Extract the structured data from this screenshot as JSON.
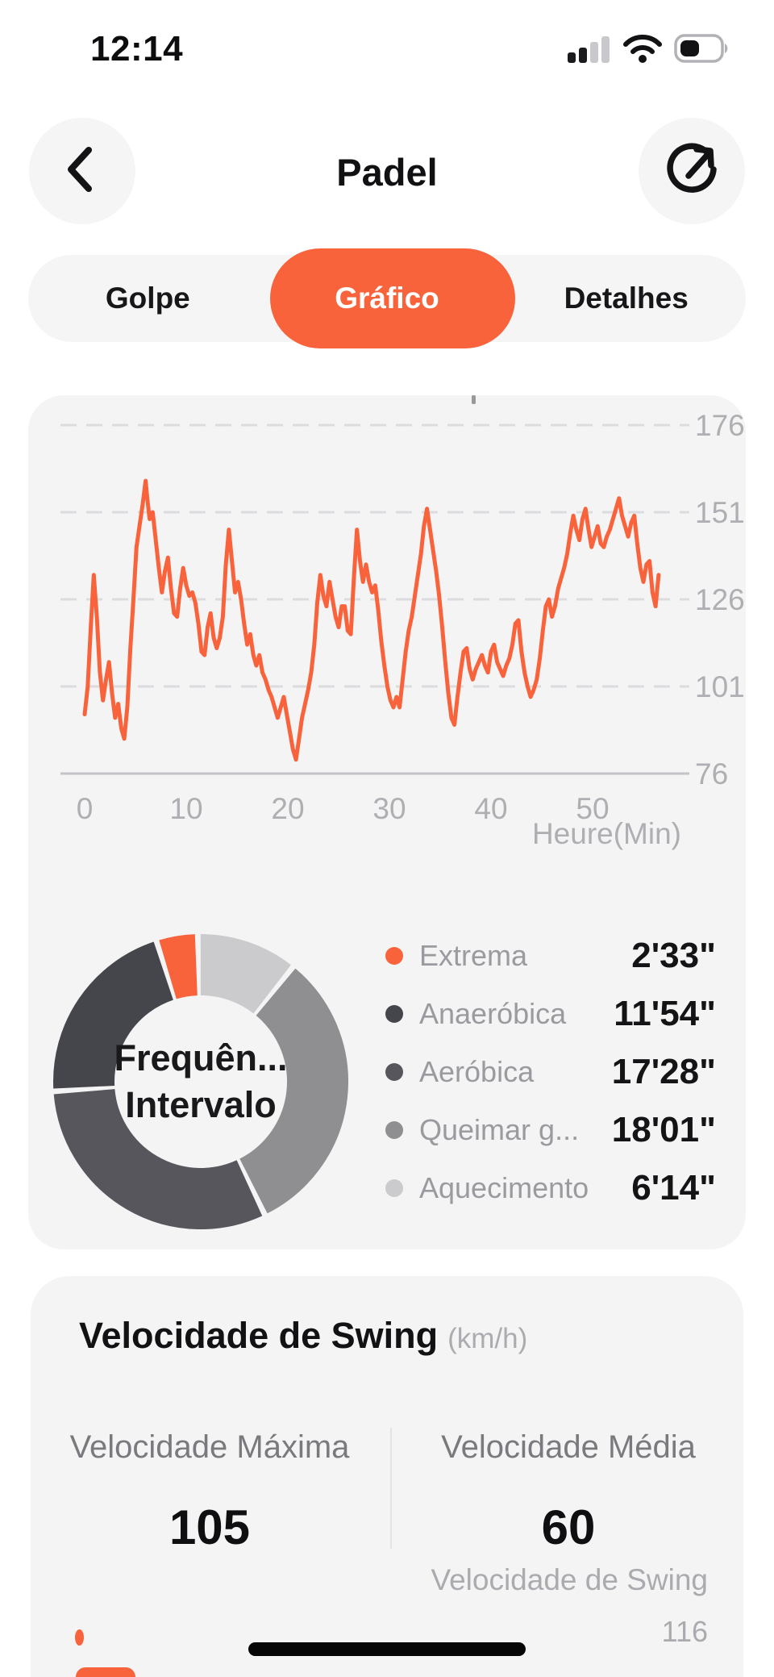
{
  "status_bar": {
    "time": "12:14"
  },
  "header": {
    "title": "Padel"
  },
  "tabs": {
    "items": [
      {
        "label": "Golpe"
      },
      {
        "label": "Gráfico"
      },
      {
        "label": "Detalhes"
      }
    ],
    "active_index": 1
  },
  "colors": {
    "accent_orange": "#F9633C",
    "card_bg": "#F4F4F5",
    "axis_gray": "#AFAFB3",
    "gridline": "#DCDCDE",
    "baseline": "#C4C4C8",
    "legend_label": "#9A9A9F",
    "value_black": "#141416"
  },
  "chart_data": [
    {
      "id": "heart_rate",
      "type": "line",
      "xlabel": "Heure(Min)",
      "ylabel": "",
      "ylim": [
        76,
        176
      ],
      "yticks": [
        176,
        151,
        126,
        101,
        76
      ],
      "xticks": [
        0,
        10,
        20,
        30,
        40,
        50
      ],
      "grid": "dashed-horizontal",
      "legend": "none",
      "series": [
        {
          "name": "heart-rate-bpm",
          "color": "#F9633C",
          "points": [
            [
              0,
              93
            ],
            [
              0.3,
              101
            ],
            [
              0.6,
              118
            ],
            [
              0.9,
              133
            ],
            [
              1.2,
              121
            ],
            [
              1.5,
              105
            ],
            [
              1.8,
              97
            ],
            [
              2.1,
              103
            ],
            [
              2.4,
              108
            ],
            [
              2.7,
              99
            ],
            [
              3,
              92
            ],
            [
              3.3,
              96
            ],
            [
              3.6,
              89
            ],
            [
              3.9,
              86
            ],
            [
              4.2,
              95
            ],
            [
              4.5,
              112
            ],
            [
              4.8,
              126
            ],
            [
              5.1,
              141
            ],
            [
              5.4,
              147
            ],
            [
              5.7,
              153
            ],
            [
              6,
              160
            ],
            [
              6.2,
              154
            ],
            [
              6.4,
              149
            ],
            [
              6.7,
              151
            ],
            [
              7,
              143
            ],
            [
              7.3,
              135
            ],
            [
              7.6,
              128
            ],
            [
              7.9,
              134
            ],
            [
              8.2,
              138
            ],
            [
              8.5,
              129
            ],
            [
              8.8,
              122
            ],
            [
              9.1,
              121
            ],
            [
              9.4,
              129
            ],
            [
              9.7,
              135
            ],
            [
              10,
              130
            ],
            [
              10.3,
              127
            ],
            [
              10.6,
              128
            ],
            [
              10.9,
              125
            ],
            [
              11.2,
              119
            ],
            [
              11.5,
              111
            ],
            [
              11.8,
              110
            ],
            [
              12.1,
              118
            ],
            [
              12.4,
              122
            ],
            [
              12.7,
              115
            ],
            [
              13,
              112
            ],
            [
              13.3,
              115
            ],
            [
              13.6,
              121
            ],
            [
              13.9,
              136
            ],
            [
              14.2,
              146
            ],
            [
              14.5,
              137
            ],
            [
              14.8,
              128
            ],
            [
              15.1,
              131
            ],
            [
              15.4,
              126
            ],
            [
              15.7,
              119
            ],
            [
              16,
              113
            ],
            [
              16.3,
              116
            ],
            [
              16.6,
              110
            ],
            [
              16.9,
              107
            ],
            [
              17.2,
              110
            ],
            [
              17.5,
              105
            ],
            [
              17.8,
              103
            ],
            [
              18.1,
              100
            ],
            [
              18.4,
              98
            ],
            [
              18.7,
              95
            ],
            [
              19,
              92
            ],
            [
              19.3,
              95
            ],
            [
              19.6,
              98
            ],
            [
              19.9,
              93
            ],
            [
              20.2,
              88
            ],
            [
              20.5,
              83
            ],
            [
              20.8,
              80
            ],
            [
              21.1,
              86
            ],
            [
              21.4,
              92
            ],
            [
              21.7,
              96
            ],
            [
              22,
              100
            ],
            [
              22.3,
              105
            ],
            [
              22.6,
              113
            ],
            [
              22.9,
              125
            ],
            [
              23.2,
              133
            ],
            [
              23.5,
              127
            ],
            [
              23.8,
              124
            ],
            [
              24.1,
              131
            ],
            [
              24.4,
              126
            ],
            [
              24.7,
              121
            ],
            [
              25,
              118
            ],
            [
              25.3,
              124
            ],
            [
              25.6,
              124
            ],
            [
              25.9,
              117
            ],
            [
              26.2,
              116
            ],
            [
              26.5,
              132
            ],
            [
              26.8,
              146
            ],
            [
              27.1,
              137
            ],
            [
              27.4,
              131
            ],
            [
              27.7,
              136
            ],
            [
              28,
              131
            ],
            [
              28.3,
              128
            ],
            [
              28.6,
              130
            ],
            [
              28.9,
              123
            ],
            [
              29.2,
              114
            ],
            [
              29.5,
              107
            ],
            [
              29.8,
              101
            ],
            [
              30.1,
              97
            ],
            [
              30.4,
              95
            ],
            [
              30.7,
              98
            ],
            [
              31,
              95
            ],
            [
              31.3,
              103
            ],
            [
              31.6,
              111
            ],
            [
              31.9,
              117
            ],
            [
              32.2,
              121
            ],
            [
              32.5,
              127
            ],
            [
              32.8,
              133
            ],
            [
              33.1,
              139
            ],
            [
              33.4,
              147
            ],
            [
              33.7,
              152
            ],
            [
              34,
              146
            ],
            [
              34.3,
              140
            ],
            [
              34.6,
              134
            ],
            [
              34.9,
              127
            ],
            [
              35.2,
              118
            ],
            [
              35.5,
              108
            ],
            [
              35.8,
              99
            ],
            [
              36.1,
              92
            ],
            [
              36.4,
              90
            ],
            [
              36.7,
              98
            ],
            [
              37,
              105
            ],
            [
              37.3,
              111
            ],
            [
              37.6,
              112
            ],
            [
              37.9,
              106
            ],
            [
              38.2,
              103
            ],
            [
              38.5,
              106
            ],
            [
              38.8,
              108
            ],
            [
              39.1,
              110
            ],
            [
              39.4,
              107
            ],
            [
              39.7,
              105
            ],
            [
              40,
              111
            ],
            [
              40.3,
              113
            ],
            [
              40.6,
              108
            ],
            [
              40.9,
              106
            ],
            [
              41.2,
              104
            ],
            [
              41.5,
              107
            ],
            [
              41.8,
              109
            ],
            [
              42.1,
              113
            ],
            [
              42.4,
              119
            ],
            [
              42.7,
              120
            ],
            [
              43,
              111
            ],
            [
              43.3,
              105
            ],
            [
              43.6,
              101
            ],
            [
              43.9,
              98
            ],
            [
              44.2,
              100
            ],
            [
              44.5,
              103
            ],
            [
              44.8,
              109
            ],
            [
              45.1,
              117
            ],
            [
              45.4,
              124
            ],
            [
              45.7,
              126
            ],
            [
              46,
              121
            ],
            [
              46.3,
              124
            ],
            [
              46.6,
              129
            ],
            [
              46.9,
              132
            ],
            [
              47.2,
              135
            ],
            [
              47.5,
              139
            ],
            [
              47.8,
              145
            ],
            [
              48.1,
              150
            ],
            [
              48.4,
              146
            ],
            [
              48.7,
              143
            ],
            [
              49,
              149
            ],
            [
              49.3,
              152
            ],
            [
              49.6,
              146
            ],
            [
              49.9,
              141
            ],
            [
              50.2,
              144
            ],
            [
              50.5,
              147
            ],
            [
              50.8,
              142
            ],
            [
              51.1,
              141
            ],
            [
              51.4,
              144
            ],
            [
              51.7,
              146
            ],
            [
              52,
              149
            ],
            [
              52.3,
              152
            ],
            [
              52.6,
              155
            ],
            [
              52.9,
              150
            ],
            [
              53.2,
              147
            ],
            [
              53.5,
              144
            ],
            [
              53.8,
              148
            ],
            [
              54.1,
              150
            ],
            [
              54.4,
              142
            ],
            [
              54.7,
              135
            ],
            [
              55,
              131
            ],
            [
              55.3,
              136
            ],
            [
              55.6,
              137
            ],
            [
              55.9,
              128
            ],
            [
              56.2,
              124
            ],
            [
              56.5,
              133
            ]
          ]
        }
      ]
    },
    {
      "id": "hr_zones",
      "type": "pie",
      "center_line1": "Frequên...",
      "center_line2": "Intervalo",
      "start_deg": -17.5,
      "gap_deg": 2.2,
      "order": [
        0,
        4,
        3,
        2,
        1
      ],
      "slices": [
        {
          "label": "Extrema",
          "value": "2'33\"",
          "seconds": 153,
          "color": "#F9633C"
        },
        {
          "label": "Anaeróbica",
          "value": "11'54\"",
          "seconds": 714,
          "color": "#45454C"
        },
        {
          "label": "Aeróbica",
          "value": "17'28\"",
          "seconds": 1048,
          "color": "#56565C"
        },
        {
          "label": "Queimar g...",
          "value": "18'01\"",
          "seconds": 1081,
          "color": "#8F8F92"
        },
        {
          "label": "Aquecimento",
          "value": "6'14\"",
          "seconds": 374,
          "color": "#CBCBCD"
        }
      ],
      "legend_position": "right"
    }
  ],
  "swing": {
    "title": "Velocidade de Swing",
    "unit": "(km/h)",
    "max_label": "Velocidade Máxima",
    "max_value": "105",
    "avg_label": "Velocidade Média",
    "avg_value": "60",
    "next_chart_title": "Velocidade de Swing",
    "next_chart_tick": "116"
  }
}
